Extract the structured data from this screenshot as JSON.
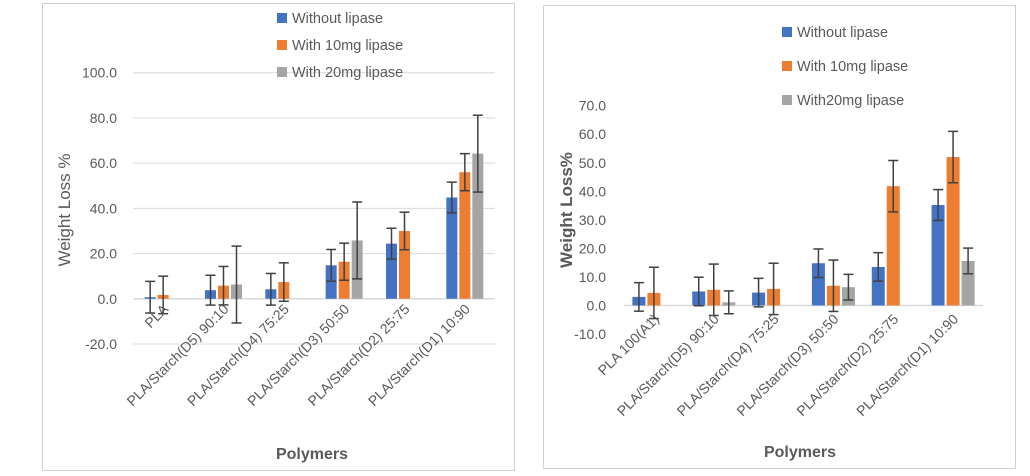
{
  "chart_data": [
    {
      "type": "bar",
      "xlabel": "Polymers",
      "ylabel": "Weight Loss %",
      "ylim": [
        -20,
        100
      ],
      "yticks": [
        "-20.0",
        "0.0",
        "20.0",
        "40.0",
        "60.0",
        "80.0",
        "100.0"
      ],
      "grid": true,
      "legend": "top",
      "categories": [
        "PLA",
        "PLA/Starch(D5) 90:10",
        "PLA/Starch(D4) 75:25",
        "PLA/Starch(D3) 50:50",
        "PLA/Starch(D2) 25:75",
        "PLA/Starch(D1) 10:90"
      ],
      "series": [
        {
          "name": "Without lipase",
          "color": "#4472c4",
          "values": [
            0.7,
            3.8,
            4.2,
            14.8,
            24.4,
            44.8
          ],
          "errors": [
            7,
            6.6,
            7,
            7,
            6.8,
            6.8
          ]
        },
        {
          "name": "With 10mg lipase",
          "color": "#ed7d31",
          "values": [
            1.7,
            5.8,
            7.4,
            16.4,
            30,
            56
          ],
          "errors": [
            8.3,
            8.5,
            8.5,
            8.2,
            8.3,
            8.2
          ]
        },
        {
          "name": "With 20mg lipase",
          "color": "#a5a5a5",
          "values": [
            null,
            6.3,
            null,
            25.8,
            null,
            64.2
          ],
          "errors": [
            null,
            17,
            null,
            17,
            null,
            17
          ]
        }
      ]
    },
    {
      "type": "bar",
      "xlabel": "Polymers",
      "ylabel": "Weight Loss%",
      "ylim": [
        -10,
        70
      ],
      "yticks": [
        "-10.0",
        "0.0",
        "10.0",
        "20.0",
        "30.0",
        "40.0",
        "50.0",
        "60.0",
        "70.0"
      ],
      "grid": false,
      "legend": "top",
      "categories": [
        "PLA 100(A1)",
        "PLA/Starch(D5) 90:10",
        "PLA/Starch(D4) 75:25",
        "PLA/Starch(D3) 50:50",
        "PLA/Starch(D2) 25:75",
        "PLA/Starch(D1) 10:90"
      ],
      "series": [
        {
          "name": "Without lipase",
          "color": "#4472c4",
          "values": [
            3,
            4.9,
            4.5,
            14.8,
            13.5,
            35.2
          ],
          "errors": [
            5,
            5,
            5,
            5,
            5,
            5.4
          ]
        },
        {
          "name": "With 10mg lipase",
          "color": "#ed7d31",
          "values": [
            4.4,
            5.5,
            5.8,
            6.9,
            41.8,
            52
          ],
          "errors": [
            9,
            9,
            9,
            9,
            9,
            9
          ]
        },
        {
          "name": "With20mg lipase",
          "color": "#a5a5a5",
          "values": [
            null,
            1.1,
            null,
            6.4,
            null,
            15.6
          ],
          "errors": [
            null,
            4,
            null,
            4.5,
            null,
            4.5
          ]
        }
      ]
    }
  ]
}
